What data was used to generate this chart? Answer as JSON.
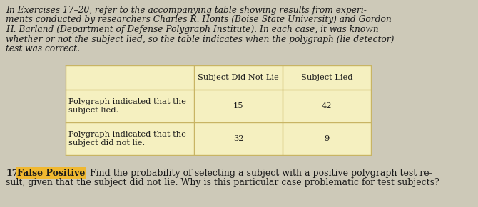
{
  "intro_lines": [
    "In Exercises 17–20, refer to the accompanying table showing results from experi-",
    "ments conducted by researchers Charles R. Honts (Boise State University) and Gordon",
    "H. Barland (Department of Defense Polygraph Institute). In each case, it was known",
    "whether or not the subject lied, so the table indicates when the polygraph (lie detector)",
    "test was correct."
  ],
  "col_headers": [
    "Subject Did Not Lie",
    "Subject Lied"
  ],
  "row_labels": [
    "Polygraph indicated that the\nsubject lied.",
    "Polygraph indicated that the\nsubject did not lie."
  ],
  "data": [
    [
      15,
      42
    ],
    [
      32,
      9
    ]
  ],
  "table_bg": "#f5f0c0",
  "table_border": "#c8b464",
  "exercise_num": "17.",
  "exercise_label": "False Positive",
  "exercise_label_bg": "#f0b830",
  "exercise_text_line1": "Find the probability of selecting a subject with a positive polygraph test re-",
  "exercise_text_line2": "sult, given that the subject did not lie. Why is this particular case problematic for test subjects?",
  "bg_color": "#cdc9b8",
  "text_color": "#1a1a1a",
  "font_size_intro": 8.8,
  "font_size_table": 8.2,
  "font_size_exercise": 9.0
}
